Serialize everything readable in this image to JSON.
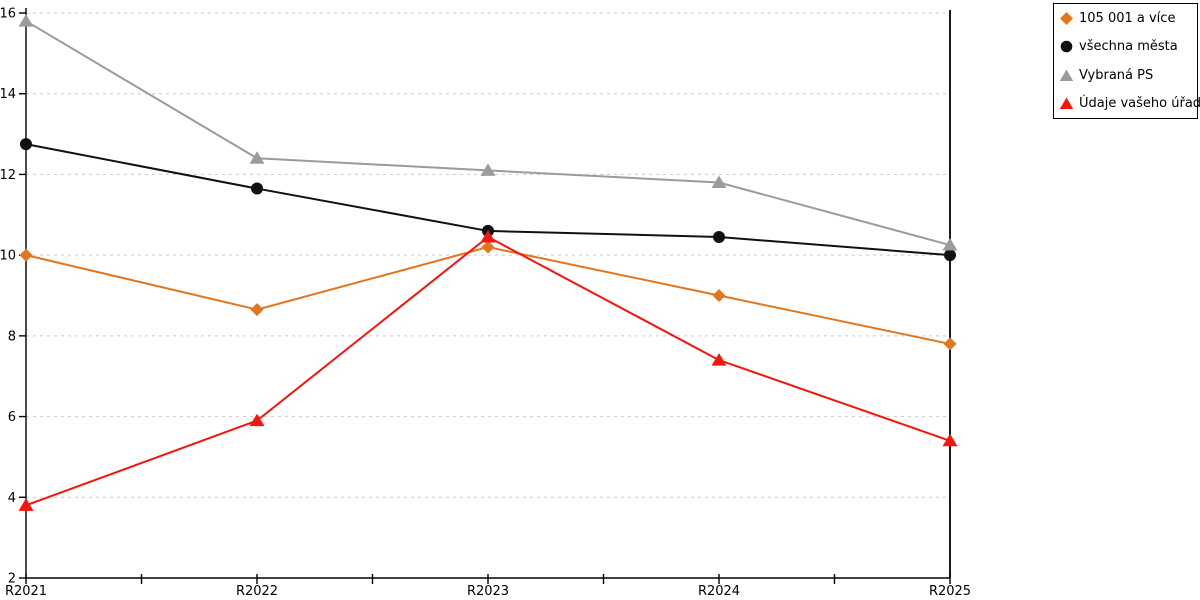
{
  "chart_data": {
    "type": "line",
    "title": "",
    "xlabel": "",
    "ylabel": "",
    "categories": [
      "R2021",
      "R2022",
      "R2023",
      "R2024",
      "R2025"
    ],
    "series": [
      {
        "name": "105 001 a více",
        "marker": "diamond",
        "color": "#E2761C",
        "values": [
          10.0,
          8.65,
          10.2,
          9.0,
          7.8
        ]
      },
      {
        "name": "všechna města",
        "marker": "circle",
        "color": "#111111",
        "values": [
          12.75,
          11.65,
          10.6,
          10.45,
          10.0
        ]
      },
      {
        "name": "Vybraná PS",
        "marker": "triangle",
        "color": "#9B9B9B",
        "values": [
          15.8,
          12.4,
          12.1,
          11.8,
          10.25
        ]
      },
      {
        "name": "Údaje vašeho úřadu",
        "marker": "triangle",
        "color": "#F6150A",
        "values": [
          3.8,
          5.9,
          10.45,
          7.4,
          5.4
        ]
      }
    ],
    "ylim": [
      2,
      16
    ],
    "ytick_step": 2,
    "grid": "horizontal-dashed",
    "gridline_color": "#c9c9c9",
    "axis_color": "#000000",
    "legend_position": "top-right"
  },
  "axes": {
    "y_ticks": [
      "16",
      "14",
      "12",
      "10",
      "8",
      "6",
      "4",
      "2"
    ],
    "x_ticks": [
      "R2021",
      "R2022",
      "R2023",
      "R2024",
      "R2025"
    ]
  }
}
